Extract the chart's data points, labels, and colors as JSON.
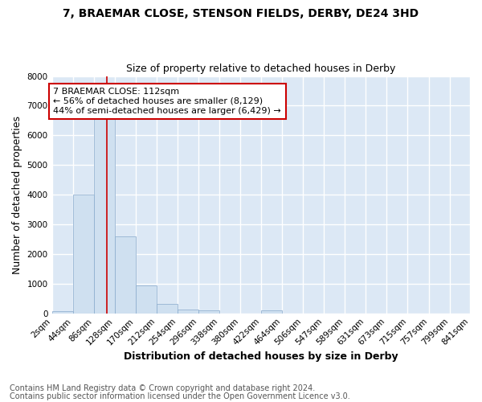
{
  "title": "7, BRAEMAR CLOSE, STENSON FIELDS, DERBY, DE24 3HD",
  "subtitle": "Size of property relative to detached houses in Derby",
  "xlabel": "Distribution of detached houses by size in Derby",
  "ylabel": "Number of detached properties",
  "bin_edges": [
    2,
    44,
    86,
    128,
    170,
    212,
    254,
    296,
    338,
    380,
    422,
    464,
    506,
    548,
    590,
    632,
    674,
    716,
    758,
    800,
    841
  ],
  "bin_labels": [
    "2sqm",
    "44sqm",
    "86sqm",
    "128sqm",
    "170sqm",
    "212sqm",
    "254sqm",
    "296sqm",
    "338sqm",
    "380sqm",
    "422sqm",
    "464sqm",
    "506sqm",
    "547sqm",
    "589sqm",
    "631sqm",
    "673sqm",
    "715sqm",
    "757sqm",
    "799sqm",
    "841sqm"
  ],
  "bar_heights": [
    80,
    4000,
    6600,
    2600,
    950,
    320,
    130,
    100,
    0,
    0,
    100,
    0,
    0,
    0,
    0,
    0,
    0,
    0,
    0,
    0
  ],
  "bar_color": "#cfe0f0",
  "bar_edgecolor": "#88aacc",
  "vline_x": 112,
  "vline_color": "#cc0000",
  "ylim": [
    0,
    8000
  ],
  "yticks": [
    0,
    1000,
    2000,
    3000,
    4000,
    5000,
    6000,
    7000,
    8000
  ],
  "annotation_text": "7 BRAEMAR CLOSE: 112sqm\n← 56% of detached houses are smaller (8,129)\n44% of semi-detached houses are larger (6,429) →",
  "annotation_box_color": "#ffffff",
  "annotation_border_color": "#cc0000",
  "footer1": "Contains HM Land Registry data © Crown copyright and database right 2024.",
  "footer2": "Contains public sector information licensed under the Open Government Licence v3.0.",
  "fig_background_color": "#ffffff",
  "plot_background": "#dce8f5",
  "grid_color": "#ffffff",
  "title_fontsize": 10,
  "subtitle_fontsize": 9,
  "axis_label_fontsize": 9,
  "tick_fontsize": 7.5,
  "footer_fontsize": 7,
  "annotation_fontsize": 8
}
